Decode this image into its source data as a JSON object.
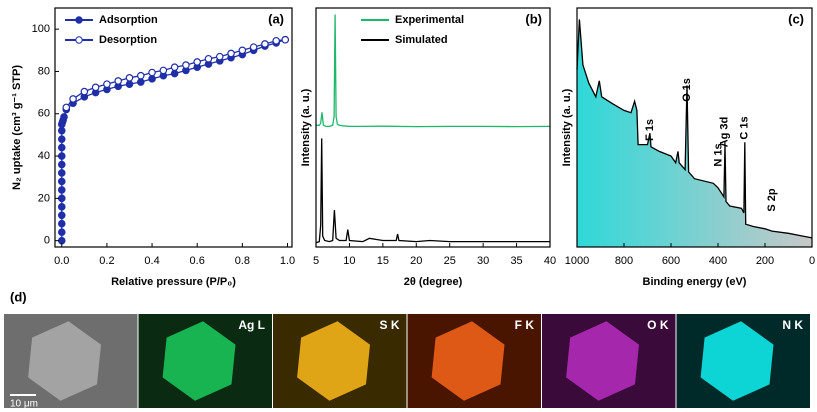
{
  "chart_data": [
    {
      "type": "line",
      "panel": "(a)",
      "xlabel": "Relative pressure (P/P₀)",
      "ylabel": "N₂ uptake (cm³ g⁻¹ STP)",
      "xlim": [
        -0.03,
        1.02
      ],
      "ylim": [
        -3,
        110
      ],
      "xticks": [
        {
          "value": 0,
          "label": "0.0"
        },
        0.2,
        0.4,
        0.6,
        0.8,
        {
          "value": 1,
          "label": "1.0"
        }
      ],
      "yticks": [
        0,
        20,
        40,
        60,
        80,
        100
      ],
      "legend": "upper left",
      "series": [
        {
          "name": "Adsorption",
          "color": "#1f2fa8",
          "marker": "filled",
          "x": [
            0,
            0,
            0,
            0,
            0,
            0,
            0,
            0,
            0,
            0,
            0,
            0,
            0,
            0,
            0,
            0.003,
            0.006,
            0.01,
            0.02,
            0.05,
            0.1,
            0.15,
            0.2,
            0.25,
            0.3,
            0.35,
            0.4,
            0.45,
            0.5,
            0.55,
            0.6,
            0.65,
            0.7,
            0.75,
            0.8,
            0.85,
            0.9,
            0.95,
            0.99
          ],
          "values": [
            0,
            4,
            8,
            12,
            16,
            20,
            24,
            28,
            32,
            36,
            40,
            44,
            48,
            52,
            55,
            56,
            57,
            58.5,
            62,
            65,
            68,
            70,
            71.5,
            73,
            74,
            75,
            76.5,
            78,
            79,
            80.5,
            82,
            83.5,
            85,
            86.5,
            88,
            90,
            92,
            93.5,
            95
          ]
        },
        {
          "name": "Desorption",
          "color": "#1f2fa8",
          "marker": "open",
          "x": [
            0.99,
            0.95,
            0.9,
            0.85,
            0.8,
            0.75,
            0.7,
            0.65,
            0.6,
            0.55,
            0.5,
            0.45,
            0.4,
            0.35,
            0.3,
            0.25,
            0.2,
            0.15,
            0.1,
            0.05,
            0.02
          ],
          "values": [
            95,
            94.5,
            93,
            91.5,
            90,
            88.5,
            87,
            86,
            84.5,
            83,
            82,
            80.5,
            79.5,
            78,
            77,
            75.5,
            74,
            72.5,
            70.5,
            67,
            63
          ]
        }
      ]
    },
    {
      "type": "line",
      "panel": "(b)",
      "xlabel": "2θ (degree)",
      "ylabel": "Intensity (a. u.)",
      "xlim": [
        5,
        40
      ],
      "ylim": [
        0,
        110
      ],
      "xticks": [
        5,
        10,
        15,
        20,
        25,
        30,
        35,
        40
      ],
      "legend": "upper center",
      "series": [
        {
          "name": "Experimental",
          "color": "#1db86a",
          "x": [
            5,
            5.5,
            5.7,
            5.9,
            6.1,
            6.5,
            7,
            7.5,
            7.7,
            7.85,
            8,
            8.2,
            8.5,
            9,
            10,
            12,
            15,
            20,
            25,
            30,
            35,
            40
          ],
          "values": [
            56,
            56,
            57,
            62,
            56,
            55.5,
            55.5,
            56,
            60,
            107,
            60,
            56.5,
            56,
            55.8,
            55.5,
            55.5,
            55.6,
            55.4,
            55.5,
            55.5,
            55.4,
            55.5
          ]
        },
        {
          "name": "Simulated",
          "color": "#000000",
          "x": [
            5,
            5.5,
            5.7,
            5.85,
            6,
            6.3,
            7,
            7.5,
            7.75,
            8,
            8.5,
            9.5,
            9.75,
            10,
            12,
            13,
            15,
            17,
            17.2,
            17.4,
            20,
            22,
            25,
            30,
            35,
            40
          ],
          "values": [
            2,
            2.5,
            10,
            50,
            5,
            3,
            2.5,
            3,
            17,
            4,
            3,
            3,
            8,
            3,
            2.5,
            4,
            3,
            3,
            6,
            3,
            2.5,
            3,
            2.5,
            2.5,
            2.5,
            2.5
          ]
        }
      ]
    },
    {
      "type": "area",
      "panel": "(c)",
      "xlabel": "Binding energy (eV)",
      "ylabel": "Intensity (a. u.)",
      "xlim": [
        1000,
        0
      ],
      "ylim": [
        0,
        105
      ],
      "xticks": [
        1000,
        800,
        600,
        400,
        200,
        0
      ],
      "fill_colors": [
        "#2fd8d8",
        "#c8c8c8"
      ],
      "annotations": [
        "O 1s",
        "F 1s",
        "Ag 3d",
        "N 1s",
        "C 1s",
        "S 2p"
      ],
      "series": [
        {
          "color": "#000000",
          "x": [
            1000,
            990,
            975,
            950,
            920,
            905,
            895,
            850,
            800,
            770,
            755,
            745,
            740,
            700,
            690,
            685,
            650,
            600,
            580,
            570,
            565,
            540,
            532,
            525,
            500,
            420,
            400,
            375,
            370,
            366,
            350,
            300,
            290,
            286,
            282,
            250,
            200,
            170,
            100,
            50,
            0
          ],
          "values": [
            78,
            100,
            80,
            72,
            66,
            73,
            66,
            63,
            60,
            59,
            64,
            60,
            45,
            45,
            50,
            44,
            42,
            40,
            37,
            42,
            37,
            34,
            71,
            33,
            30,
            28,
            26,
            22,
            45,
            20,
            18,
            17,
            15,
            46,
            10,
            9,
            8,
            7,
            6,
            5,
            4
          ]
        }
      ]
    }
  ],
  "panel_d": {
    "label": "(d)",
    "scale_bar": "10 μm",
    "maps": [
      "Ag L",
      "S K",
      "F K",
      "O K",
      "N K"
    ]
  }
}
